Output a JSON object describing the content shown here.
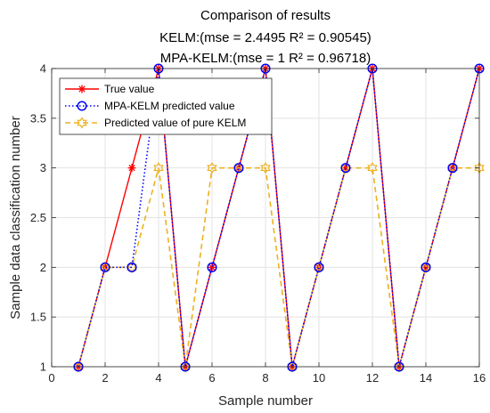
{
  "chart_data": {
    "type": "line",
    "title_lines": [
      "Comparison of results",
      "KELM:(mse = 2.4495 R² = 0.90545)",
      "MPA-KELM:(mse = 1 R² = 0.96718)"
    ],
    "xlabel": "Sample number",
    "ylabel": "Sample data classification number",
    "xlim": [
      0,
      16
    ],
    "ylim": [
      1,
      4
    ],
    "xticks": [
      0,
      2,
      4,
      6,
      8,
      10,
      12,
      14,
      16
    ],
    "yticks": [
      1,
      1.5,
      2,
      2.5,
      3,
      3.5,
      4
    ],
    "grid": true,
    "legend_position": "top-left",
    "x": [
      1,
      2,
      3,
      4,
      5,
      6,
      7,
      8,
      9,
      10,
      11,
      12,
      13,
      14,
      15,
      16
    ],
    "series": [
      {
        "name": "True value",
        "values": [
          1,
          2,
          3,
          4,
          1,
          2,
          3,
          4,
          1,
          2,
          3,
          4,
          1,
          2,
          3,
          4
        ],
        "color": "#ff0000",
        "line_style": "solid",
        "marker": "asterisk"
      },
      {
        "name": "MPA-KELM predicted value",
        "values": [
          1,
          2,
          2,
          4,
          1,
          2,
          3,
          4,
          1,
          2,
          3,
          4,
          1,
          2,
          3,
          4
        ],
        "color": "#0000ff",
        "line_style": "dotted",
        "marker": "circle"
      },
      {
        "name": "Predicted value of pure KELM",
        "values": [
          1,
          2,
          2,
          3,
          1,
          3,
          3,
          3,
          1,
          2,
          3,
          3,
          1,
          2,
          3,
          3
        ],
        "color": "#edb120",
        "line_style": "dashed",
        "marker": "hexagram"
      }
    ]
  }
}
